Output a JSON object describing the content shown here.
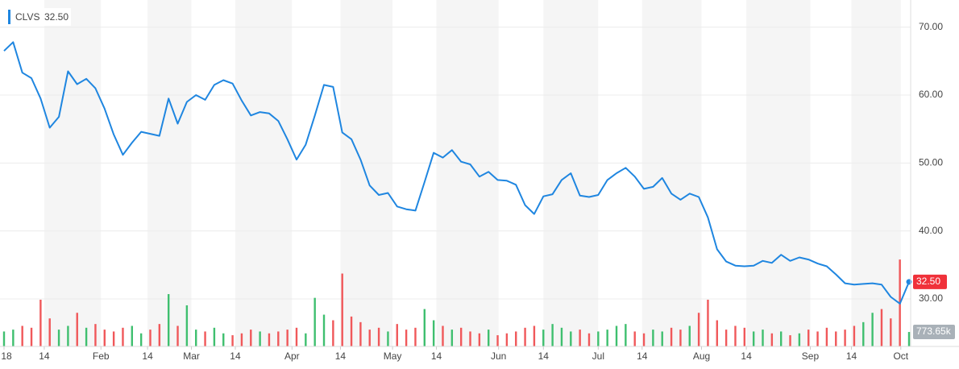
{
  "chart_data": {
    "type": "line",
    "quote": {
      "symbol": "CLVS",
      "price": {
        "value": 32.5,
        "label": "32.50"
      }
    },
    "color": "#1f86e0",
    "up_color": "#3fbf6f",
    "down_color": "#f0585a",
    "values": [
      66.5,
      67.8,
      63.3,
      62.5,
      59.5,
      55.2,
      56.8,
      63.5,
      61.6,
      62.4,
      61,
      58,
      54.2,
      51.2,
      53,
      54.6,
      54.3,
      54,
      59.5,
      55.8,
      59,
      60,
      59.3,
      61.5,
      62.2,
      61.7,
      59.2,
      57,
      57.5,
      57.3,
      56.2,
      53.5,
      50.5,
      52.7,
      57,
      61.5,
      61.2,
      54.5,
      53.5,
      50.5,
      46.7,
      45.3,
      45.6,
      43.6,
      43.2,
      43,
      47.2,
      51.5,
      50.8,
      51.9,
      50.2,
      49.8,
      48,
      48.7,
      47.5,
      47.4,
      46.8,
      43.8,
      42.5,
      45.1,
      45.4,
      47.5,
      48.5,
      45.2,
      45,
      45.3,
      47.5,
      48.5,
      49.3,
      48,
      46.2,
      46.5,
      47.8,
      45.5,
      44.6,
      45.5,
      45,
      42,
      37.3,
      35.5,
      34.9,
      34.8,
      34.9,
      35.6,
      35.3,
      36.5,
      35.6,
      36.1,
      35.8,
      35.2,
      34.8,
      33.6,
      32.3,
      32.1,
      32.2,
      32.3,
      32.1,
      30.3,
      29.3,
      32.5
    ],
    "volume": [
      800,
      900,
      1100,
      1000,
      2500,
      1500,
      900,
      1100,
      1800,
      1000,
      1200,
      900,
      800,
      1000,
      1100,
      700,
      900,
      1200,
      2800,
      1100,
      2200,
      900,
      800,
      1000,
      700,
      600,
      700,
      900,
      800,
      700,
      800,
      900,
      1000,
      700,
      2600,
      1700,
      1400,
      3900,
      1600,
      1300,
      900,
      1000,
      800,
      1200,
      900,
      1000,
      2000,
      1400,
      1100,
      900,
      1000,
      800,
      700,
      900,
      600,
      700,
      800,
      1000,
      1100,
      900,
      1200,
      1000,
      800,
      900,
      700,
      800,
      900,
      1100,
      1200,
      800,
      700,
      900,
      800,
      1000,
      900,
      1100,
      1800,
      2500,
      1400,
      900,
      1100,
      1000,
      800,
      900,
      700,
      800,
      600,
      700,
      900,
      800,
      1000,
      800,
      900,
      1100,
      1300,
      1800,
      2000,
      1500,
      4650,
      773.65
    ],
    "last_volume": {
      "value": 773.65,
      "label": "773.65k"
    },
    "xlim": [
      0,
      99
    ],
    "xticks": [
      {
        "value": 0,
        "label": "18"
      },
      {
        "value": 4.4,
        "label": "14"
      },
      {
        "value": 10.6,
        "label": "Feb"
      },
      {
        "value": 15.7,
        "label": "14"
      },
      {
        "value": 20.5,
        "label": "Mar"
      },
      {
        "value": 25.3,
        "label": "14"
      },
      {
        "value": 31.5,
        "label": "Apr"
      },
      {
        "value": 36.8,
        "label": "14"
      },
      {
        "value": 42.5,
        "label": "May"
      },
      {
        "value": 47.3,
        "label": "14"
      },
      {
        "value": 54.1,
        "label": "Jun"
      },
      {
        "value": 59,
        "label": "14"
      },
      {
        "value": 65,
        "label": "Jul"
      },
      {
        "value": 69.8,
        "label": "14"
      },
      {
        "value": 76.3,
        "label": "Aug"
      },
      {
        "value": 81.2,
        "label": "14"
      },
      {
        "value": 88.2,
        "label": "Sep"
      },
      {
        "value": 92.7,
        "label": "14"
      },
      {
        "value": 98.1,
        "label": "Oct"
      }
    ],
    "ylim": [
      23,
      74
    ],
    "yticks": [
      {
        "value": 30,
        "label": "30.00"
      },
      {
        "value": 40,
        "label": "40.00"
      },
      {
        "value": 50,
        "label": "50.00"
      },
      {
        "value": 60,
        "label": "60.00"
      },
      {
        "value": 70,
        "label": "70.00"
      }
    ],
    "y2lim": [
      0,
      10000
    ],
    "grid": true
  }
}
